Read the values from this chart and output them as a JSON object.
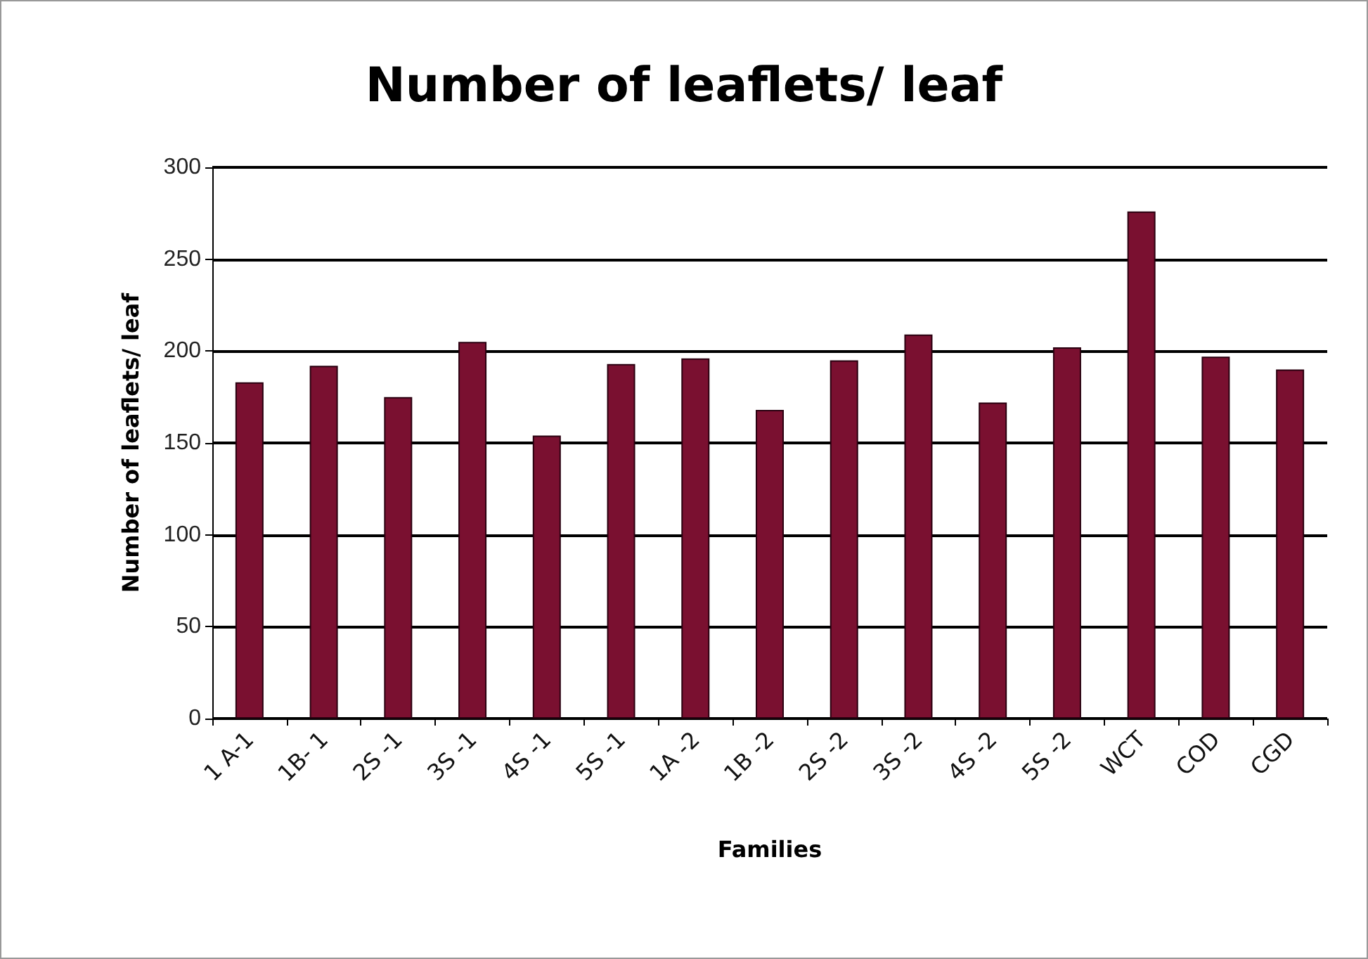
{
  "chart_data": {
    "type": "bar",
    "title": "Number of leaflets/ leaf",
    "xlabel": "Families",
    "ylabel": "Number of leaflets/ leaf",
    "categories": [
      "1 A-1",
      "1B- 1",
      "2S -1",
      "3S -1",
      "4S -1",
      "5S -1",
      "1A -2",
      "1B -2",
      "2S -2",
      "3S -2",
      "4S -2",
      "5S -2",
      "WCT",
      "COD",
      "CGD"
    ],
    "values": [
      183,
      192,
      175,
      205,
      154,
      193,
      196,
      168,
      195,
      209,
      172,
      202,
      276,
      197,
      190
    ],
    "color": "#7a1030",
    "ylim": [
      0,
      300
    ],
    "yticks": [
      0,
      50,
      100,
      150,
      200,
      250,
      300
    ],
    "grid": "y"
  }
}
